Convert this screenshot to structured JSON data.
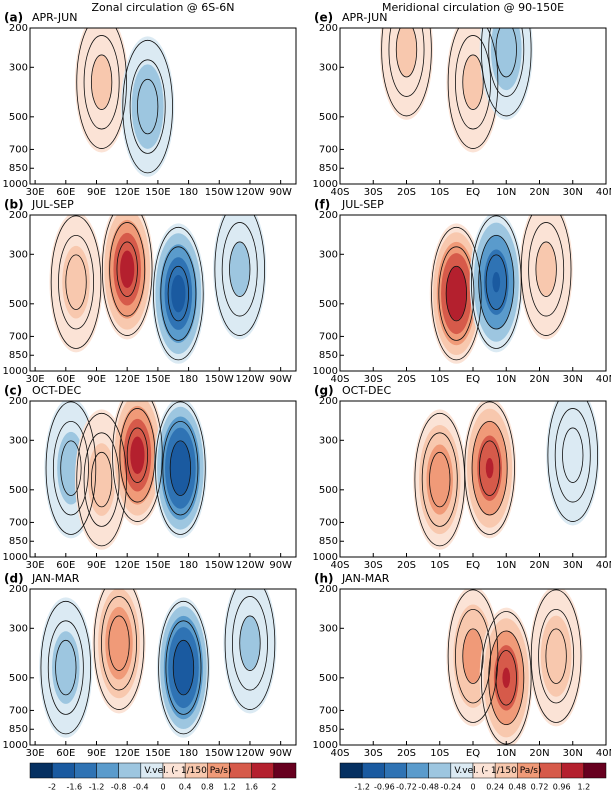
{
  "titles": [
    "Zonal circulation @ 6S-6N",
    "Meridional circulation @ 90-150E"
  ],
  "chart_data": [
    {
      "type": "contourf",
      "label": "(a)",
      "title": "APR-JUN",
      "xlim": [
        25,
        285
      ],
      "xticks": [
        {
          "value": 30,
          "label": "30E"
        },
        {
          "value": 60,
          "label": "60E"
        },
        {
          "value": 90,
          "label": "90E"
        },
        {
          "value": 120,
          "label": "120E"
        },
        {
          "value": 150,
          "label": "150E"
        },
        180,
        {
          "value": 210,
          "label": "150W"
        },
        {
          "value": 240,
          "label": "120W"
        },
        {
          "value": 270,
          "label": "90W"
        }
      ],
      "ylim": [
        1000,
        200
      ],
      "yticks": [
        200,
        300,
        500,
        700,
        850,
        1000
      ],
      "log_y": true,
      "cells": [
        {
          "x": 95,
          "y": 350,
          "value": 0.5
        },
        {
          "x": 140,
          "y": 450,
          "value": -0.7
        }
      ]
    },
    {
      "type": "contourf",
      "label": "(b)",
      "title": "JUL-SEP",
      "xlim": [
        25,
        285
      ],
      "xticks": [
        {
          "value": 30,
          "label": "30E"
        },
        {
          "value": 60,
          "label": "60E"
        },
        {
          "value": 90,
          "label": "90E"
        },
        {
          "value": 120,
          "label": "120E"
        },
        {
          "value": 150,
          "label": "150E"
        },
        180,
        {
          "value": 210,
          "label": "150W"
        },
        {
          "value": 240,
          "label": "120W"
        },
        {
          "value": 270,
          "label": "90W"
        }
      ],
      "ylim": [
        1000,
        200
      ],
      "yticks": [
        200,
        300,
        500,
        700,
        850,
        1000
      ],
      "log_y": true,
      "cells": [
        {
          "x": 70,
          "y": 400,
          "value": 0.6
        },
        {
          "x": 120,
          "y": 350,
          "value": 1.8
        },
        {
          "x": 170,
          "y": 450,
          "value": -1.8
        },
        {
          "x": 230,
          "y": 350,
          "value": -0.5
        }
      ]
    },
    {
      "type": "contourf",
      "label": "(c)",
      "title": "OCT-DEC",
      "xlim": [
        25,
        285
      ],
      "xticks": [
        {
          "value": 30,
          "label": "30E"
        },
        {
          "value": 60,
          "label": "60E"
        },
        {
          "value": 90,
          "label": "90E"
        },
        {
          "value": 120,
          "label": "120E"
        },
        {
          "value": 150,
          "label": "150E"
        },
        180,
        {
          "value": 210,
          "label": "150W"
        },
        {
          "value": 240,
          "label": "120W"
        },
        {
          "value": 270,
          "label": "90W"
        }
      ],
      "ylim": [
        1000,
        200
      ],
      "yticks": [
        200,
        300,
        500,
        700,
        850,
        1000
      ],
      "log_y": true,
      "cells": [
        {
          "x": 65,
          "y": 400,
          "value": -0.6
        },
        {
          "x": 95,
          "y": 450,
          "value": 0.6
        },
        {
          "x": 130,
          "y": 350,
          "value": 1.8
        },
        {
          "x": 172,
          "y": 400,
          "value": -2
        }
      ]
    },
    {
      "type": "contourf",
      "label": "(d)",
      "title": "JAN-MAR",
      "xlim": [
        25,
        285
      ],
      "xticks": [
        {
          "value": 30,
          "label": "30E"
        },
        {
          "value": 60,
          "label": "60E"
        },
        {
          "value": 90,
          "label": "90E"
        },
        {
          "value": 120,
          "label": "120E"
        },
        {
          "value": 150,
          "label": "150E"
        },
        180,
        {
          "value": 210,
          "label": "150W"
        },
        {
          "value": 240,
          "label": "120W"
        },
        {
          "value": 270,
          "label": "90W"
        }
      ],
      "ylim": [
        1000,
        200
      ],
      "yticks": [
        200,
        300,
        500,
        700,
        850,
        1000
      ],
      "log_y": true,
      "cells": [
        {
          "x": 60,
          "y": 450,
          "value": -0.6
        },
        {
          "x": 112,
          "y": 350,
          "value": 1.2
        },
        {
          "x": 175,
          "y": 450,
          "value": -2
        },
        {
          "x": 240,
          "y": 350,
          "value": -0.5
        }
      ]
    },
    {
      "type": "contourf",
      "label": "(e)",
      "title": "APR-JUN",
      "xlim": [
        -40,
        40
      ],
      "xticks": [
        {
          "value": -40,
          "label": "40S"
        },
        {
          "value": -30,
          "label": "30S"
        },
        {
          "value": -20,
          "label": "20S"
        },
        {
          "value": -10,
          "label": "10S"
        },
        {
          "value": 0,
          "label": "EQ"
        },
        {
          "value": 10,
          "label": "10N"
        },
        {
          "value": 20,
          "label": "20N"
        },
        {
          "value": 30,
          "label": "30N"
        },
        {
          "value": 40,
          "label": "40N"
        }
      ],
      "ylim": [
        1000,
        200
      ],
      "yticks": [
        200,
        300,
        500,
        700,
        850,
        1000
      ],
      "log_y": true,
      "cells": [
        {
          "x": -20,
          "y": 250,
          "value": 0.3
        },
        {
          "x": 0,
          "y": 350,
          "value": 0.3
        },
        {
          "x": 10,
          "y": 250,
          "value": -0.4
        }
      ]
    },
    {
      "type": "contourf",
      "label": "(f)",
      "title": "JUL-SEP",
      "xlim": [
        -40,
        40
      ],
      "xticks": [
        {
          "value": -40,
          "label": "40S"
        },
        {
          "value": -30,
          "label": "30S"
        },
        {
          "value": -20,
          "label": "20S"
        },
        {
          "value": -10,
          "label": "10S"
        },
        {
          "value": 0,
          "label": "EQ"
        },
        {
          "value": 10,
          "label": "10N"
        },
        {
          "value": 20,
          "label": "20N"
        },
        {
          "value": 30,
          "label": "30N"
        },
        {
          "value": 40,
          "label": "40N"
        }
      ],
      "ylim": [
        1000,
        200
      ],
      "yticks": [
        200,
        300,
        500,
        700,
        850,
        1000
      ],
      "log_y": true,
      "cells": [
        {
          "x": -5,
          "y": 450,
          "value": 1.2
        },
        {
          "x": 7,
          "y": 400,
          "value": -1
        },
        {
          "x": 22,
          "y": 350,
          "value": 0.3
        }
      ]
    },
    {
      "type": "contourf",
      "label": "(g)",
      "title": "OCT-DEC",
      "xlim": [
        -40,
        40
      ],
      "xticks": [
        {
          "value": -40,
          "label": "40S"
        },
        {
          "value": -30,
          "label": "30S"
        },
        {
          "value": -20,
          "label": "20S"
        },
        {
          "value": -10,
          "label": "10S"
        },
        {
          "value": 0,
          "label": "EQ"
        },
        {
          "value": 10,
          "label": "10N"
        },
        {
          "value": 20,
          "label": "20N"
        },
        {
          "value": 30,
          "label": "30N"
        },
        {
          "value": 40,
          "label": "40N"
        }
      ],
      "ylim": [
        1000,
        200
      ],
      "yticks": [
        200,
        300,
        500,
        700,
        850,
        1000
      ],
      "log_y": true,
      "cells": [
        {
          "x": -10,
          "y": 450,
          "value": 0.7
        },
        {
          "x": 5,
          "y": 400,
          "value": 1
        },
        {
          "x": 30,
          "y": 350,
          "value": -0.2
        }
      ]
    },
    {
      "type": "contourf",
      "label": "(h)",
      "title": "JAN-MAR",
      "xlim": [
        -40,
        40
      ],
      "xticks": [
        {
          "value": -40,
          "label": "40S"
        },
        {
          "value": -30,
          "label": "30S"
        },
        {
          "value": -20,
          "label": "20S"
        },
        {
          "value": -10,
          "label": "10S"
        },
        {
          "value": 0,
          "label": "EQ"
        },
        {
          "value": 10,
          "label": "10N"
        },
        {
          "value": 20,
          "label": "20N"
        },
        {
          "value": 30,
          "label": "30N"
        },
        {
          "value": 40,
          "label": "40N"
        }
      ],
      "ylim": [
        1000,
        200
      ],
      "yticks": [
        200,
        300,
        500,
        700,
        850,
        1000
      ],
      "log_y": true,
      "cells": [
        {
          "x": 0,
          "y": 400,
          "value": 0.6
        },
        {
          "x": 10,
          "y": 500,
          "value": 1
        },
        {
          "x": 25,
          "y": 400,
          "value": 0.4
        }
      ]
    }
  ],
  "colorbars": [
    {
      "label": "V.vel. (- 1/150 Pa/s)",
      "ticks": [
        -2,
        -1.6,
        -1.2,
        -0.8,
        -0.4,
        0,
        0.4,
        0.8,
        1.2,
        1.6,
        2
      ],
      "colors": [
        "#053061",
        "#1a5aa0",
        "#2f73b4",
        "#5a9bcc",
        "#9dc6e0",
        "#dbeaf3",
        "#fbe3d6",
        "#f8c8ae",
        "#f09a78",
        "#d65a4a",
        "#b4202e",
        "#67001f"
      ]
    },
    {
      "label": "V.vel. (- 1/150 Pa/s)",
      "ticks": [
        -1.2,
        -0.96,
        -0.72,
        -0.48,
        -0.24,
        0,
        0.24,
        0.48,
        0.72,
        0.96,
        1.2
      ],
      "colors": [
        "#053061",
        "#1a5aa0",
        "#2f73b4",
        "#5a9bcc",
        "#9dc6e0",
        "#dbeaf3",
        "#fbe3d6",
        "#f8c8ae",
        "#f09a78",
        "#d65a4a",
        "#b4202e",
        "#67001f"
      ]
    }
  ]
}
